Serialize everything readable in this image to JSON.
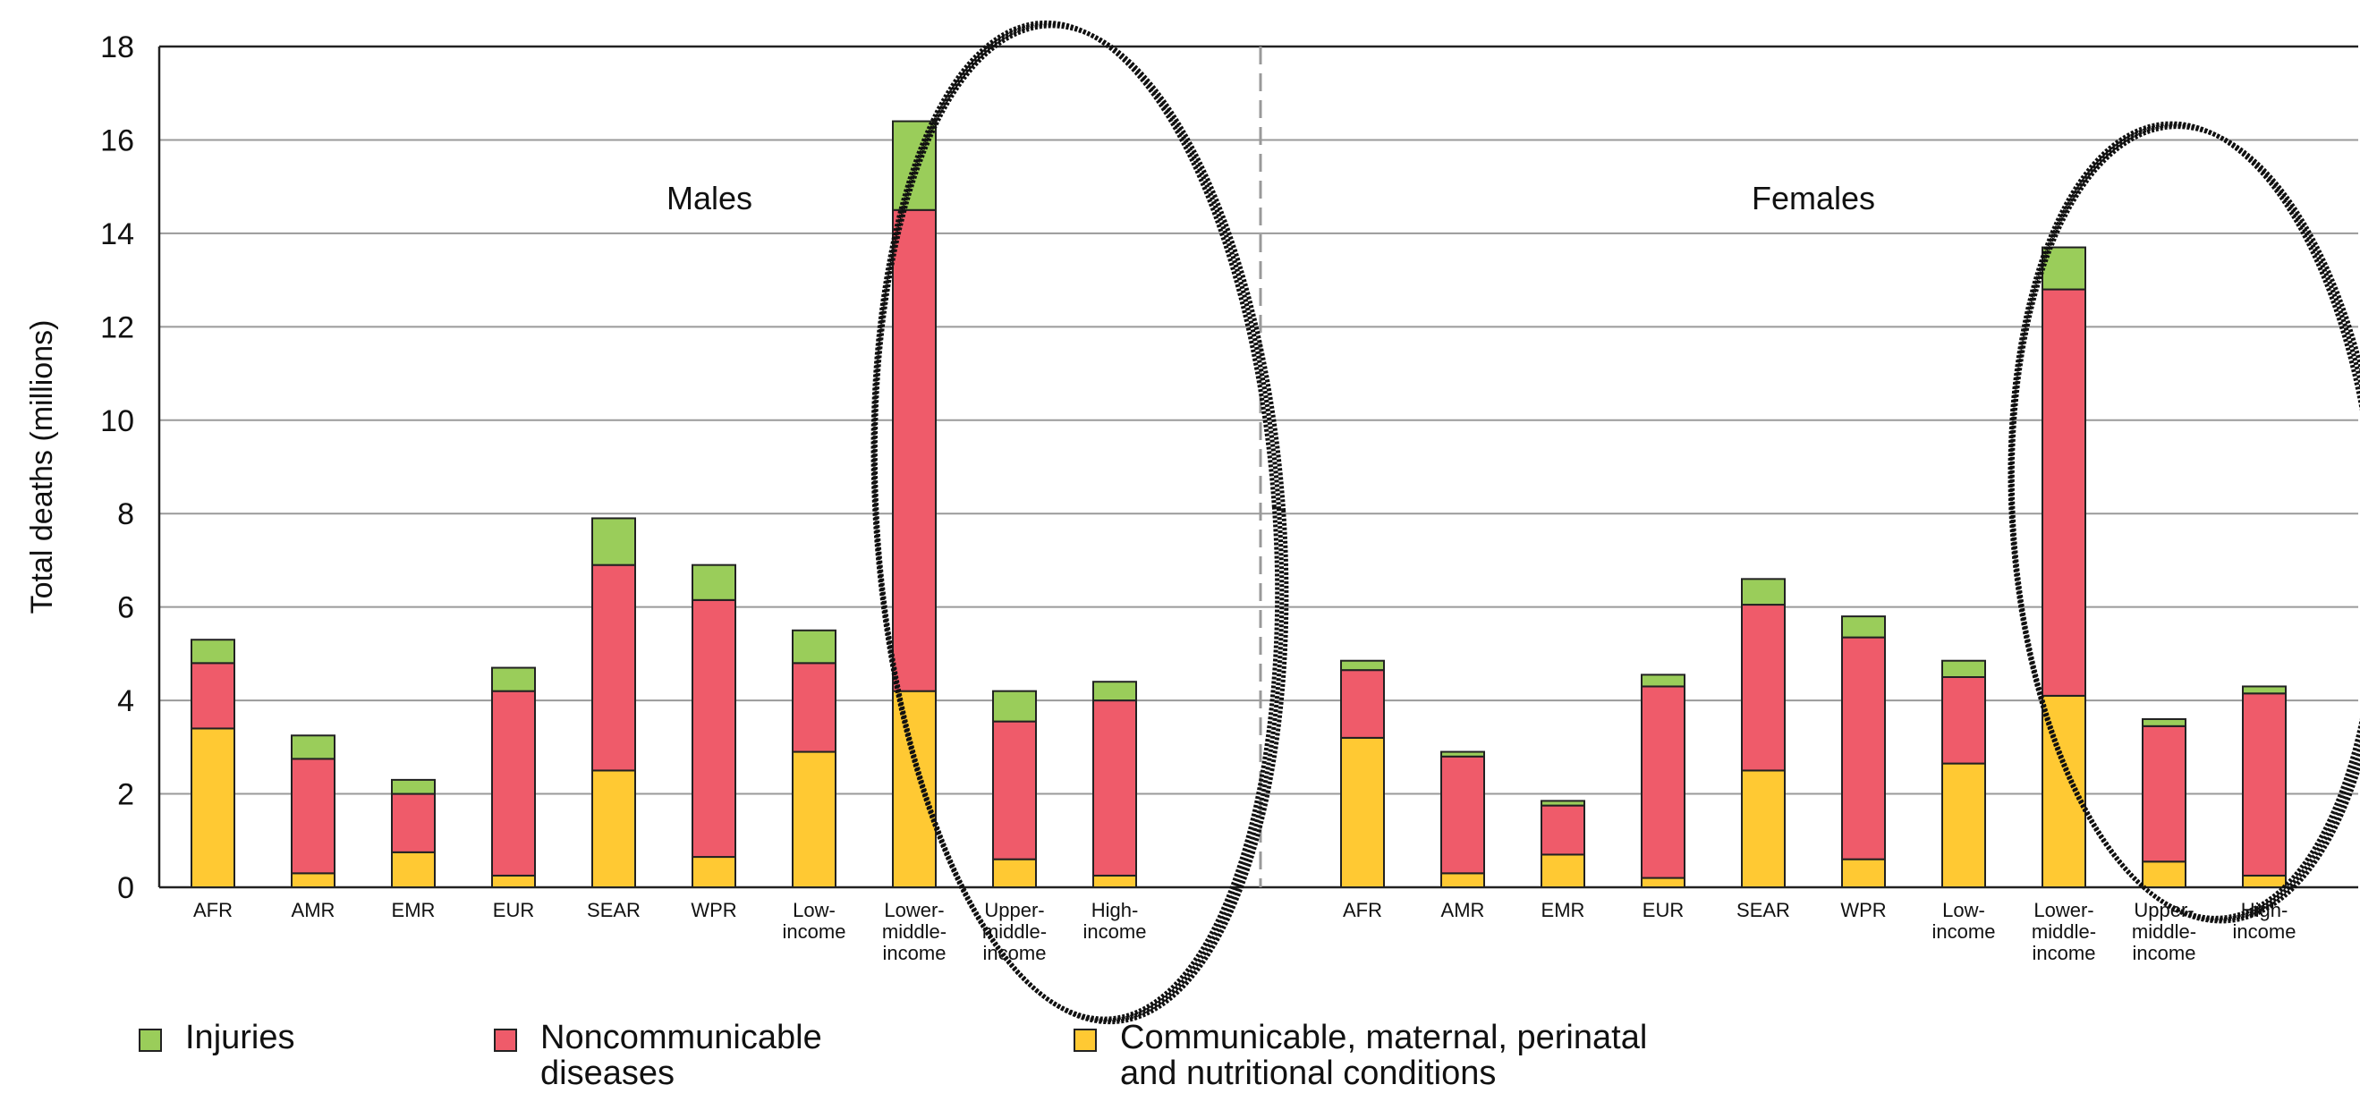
{
  "chart_data": {
    "type": "bar",
    "stacked": true,
    "ylabel": "Total deaths (millions)",
    "ylim": [
      0,
      18
    ],
    "yticks": [
      "0",
      "2",
      "4",
      "6",
      "8",
      "10",
      "12",
      "14",
      "16",
      "18"
    ],
    "grid": true,
    "legend_placement": "bottom",
    "panels": [
      {
        "title": "Males",
        "categories": [
          [
            "AFR"
          ],
          [
            "AMR"
          ],
          [
            "EMR"
          ],
          [
            "EUR"
          ],
          [
            "SEAR"
          ],
          [
            "WPR"
          ],
          [
            "Low-",
            "income"
          ],
          [
            "Lower-",
            "middle-",
            "income"
          ],
          [
            "Upper-",
            "middle-",
            "income"
          ],
          [
            "High-",
            "income"
          ]
        ],
        "series": [
          {
            "name": "Communicable, maternal, perinatal and nutritional conditions",
            "values": [
              3.4,
              0.3,
              0.75,
              0.25,
              2.5,
              0.65,
              2.9,
              4.2,
              0.6,
              0.25
            ]
          },
          {
            "name": "Noncommunicable diseases",
            "values": [
              1.4,
              2.45,
              1.25,
              3.95,
              4.4,
              5.5,
              1.9,
              10.3,
              2.95,
              3.75
            ]
          },
          {
            "name": "Injuries",
            "values": [
              0.5,
              0.5,
              0.3,
              0.5,
              1.0,
              0.75,
              0.7,
              1.9,
              0.65,
              0.4
            ]
          }
        ]
      },
      {
        "title": "Females",
        "categories": [
          [
            "AFR"
          ],
          [
            "AMR"
          ],
          [
            "EMR"
          ],
          [
            "EUR"
          ],
          [
            "SEAR"
          ],
          [
            "WPR"
          ],
          [
            "Low-",
            "income"
          ],
          [
            "Lower-",
            "middle-",
            "income"
          ],
          [
            "Upper-",
            "middle-",
            "income"
          ],
          [
            "High-",
            "income"
          ]
        ],
        "series": [
          {
            "name": "Communicable, maternal, perinatal and nutritional conditions",
            "values": [
              3.2,
              0.3,
              0.7,
              0.2,
              2.5,
              0.6,
              2.65,
              4.1,
              0.55,
              0.25
            ]
          },
          {
            "name": "Noncommunicable diseases",
            "values": [
              1.45,
              2.5,
              1.05,
              4.1,
              3.55,
              4.75,
              1.85,
              8.7,
              2.9,
              3.9
            ]
          },
          {
            "name": "Injuries",
            "values": [
              0.2,
              0.1,
              0.1,
              0.25,
              0.55,
              0.45,
              0.35,
              0.9,
              0.15,
              0.15
            ]
          }
        ]
      }
    ]
  },
  "colors": {
    "injuries": "#9ACD5A",
    "noncommunicable": "#EF5B6A",
    "communicable": "#FFC933",
    "outline": "#222222",
    "grid": "#9a9a9a",
    "divider": "#999999",
    "annotation": "#111111"
  },
  "legend": {
    "injuries": "Injuries",
    "noncommunicable": "Noncommunicable\ndiseases",
    "communicable": "Communicable, maternal, perinatal\nand nutritional conditions"
  }
}
